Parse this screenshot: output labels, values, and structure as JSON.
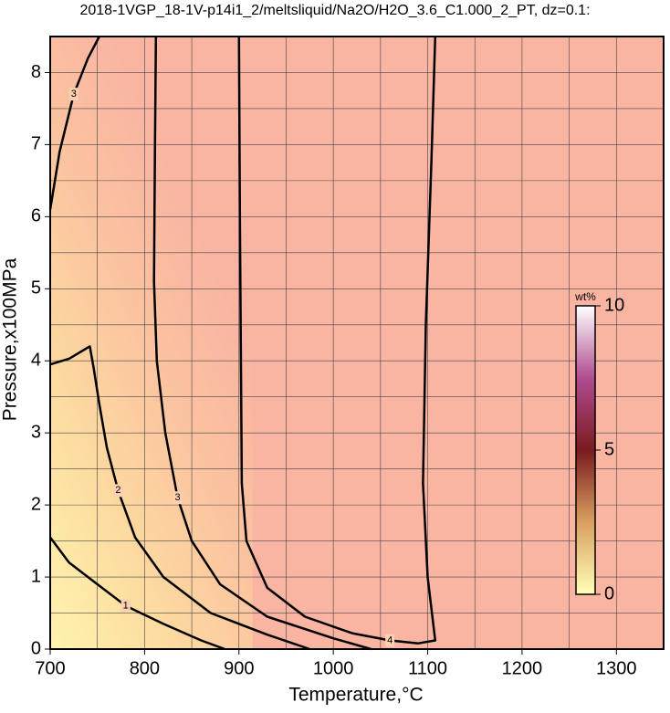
{
  "chart_data": {
    "type": "contour",
    "title": "2018-1VGP_18-1V-p14i1_2/meltsliquid/Na2O/H2O_3.6_C1.000_2_PT, dz=0.1:",
    "x_label": "Temperature,°C",
    "y_label": "Pressure,x100MPa",
    "xlim": [
      700,
      1350
    ],
    "ylim": [
      0,
      8.5
    ],
    "xticks": [
      700,
      800,
      900,
      1000,
      1100,
      1200,
      1300
    ],
    "yticks": [
      0,
      1,
      2,
      3,
      4,
      5,
      6,
      7,
      8
    ],
    "grid": true,
    "contours": [
      {
        "name": "1",
        "x": [
          700,
          720,
          750,
          780,
          820,
          860,
          885
        ],
        "y": [
          1.55,
          1.2,
          0.9,
          0.6,
          0.35,
          0.12,
          0
        ]
      },
      {
        "name": "2",
        "x": [
          700,
          720,
          742,
          746,
          752,
          760,
          772,
          790,
          820,
          870,
          930,
          975
        ],
        "y": [
          3.95,
          4.03,
          4.2,
          3.9,
          3.4,
          2.8,
          2.2,
          1.55,
          1.0,
          0.5,
          0.2,
          0
        ]
      },
      {
        "name": "3",
        "x": [
          812,
          811,
          810,
          813,
          822,
          835,
          850,
          880,
          930,
          1000,
          1040
        ],
        "y": [
          8.5,
          7,
          5.1,
          4,
          3,
          2.1,
          1.5,
          0.9,
          0.45,
          0.15,
          0
        ]
      },
      {
        "name": "3",
        "x": [
          700,
          710,
          725,
          740,
          752
        ],
        "y": [
          6.1,
          6.9,
          7.7,
          8.2,
          8.5
        ]
      },
      {
        "name": "4",
        "x": [
          900,
          901,
          903,
          908,
          930,
          970,
          1020,
          1060,
          1090,
          1108,
          1100,
          1095,
          1098,
          1104,
          1108
        ],
        "y": [
          8.5,
          6,
          2.3,
          1.5,
          0.85,
          0.45,
          0.22,
          0.12,
          0.08,
          0.12,
          1.0,
          2.3,
          4.5,
          6.8,
          8.5
        ]
      }
    ],
    "colorbar": {
      "label": "wt%",
      "lim": [
        0,
        10
      ],
      "ticks": [
        0,
        5,
        10
      ]
    }
  }
}
